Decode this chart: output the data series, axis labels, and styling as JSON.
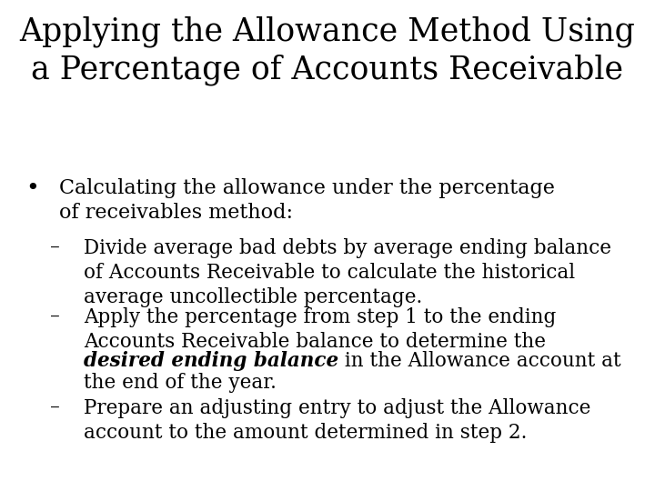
{
  "background_color": "#ffffff",
  "title_line1": "Applying the Allowance Method Using",
  "title_line2": "a Percentage of Accounts Receivable",
  "title_fontsize": 25,
  "body_font": "DejaVu Serif",
  "bullet_fontsize": 16,
  "sub_fontsize": 15.5,
  "bullet_text_line1": "Calculating the allowance under the percentage",
  "bullet_text_line2": "of receivables method:",
  "sub1_line1": "Divide average bad debts by average ending balance",
  "sub1_line2": "of Accounts Receivable to calculate the historical",
  "sub1_line3": "average uncollectible percentage.",
  "sub2_line1": "Apply the percentage from step 1 to the ending",
  "sub2_line2": "Accounts Receivable balance to determine the",
  "sub2_bold_italic": "desired ending balance",
  "sub2_after_bold": " in the Allowance account at",
  "sub2_line4": "the end of the year.",
  "sub3_line1": "Prepare an adjusting entry to adjust the Allowance",
  "sub3_line2": "account to the amount determined in step 2.",
  "text_color": "#000000"
}
